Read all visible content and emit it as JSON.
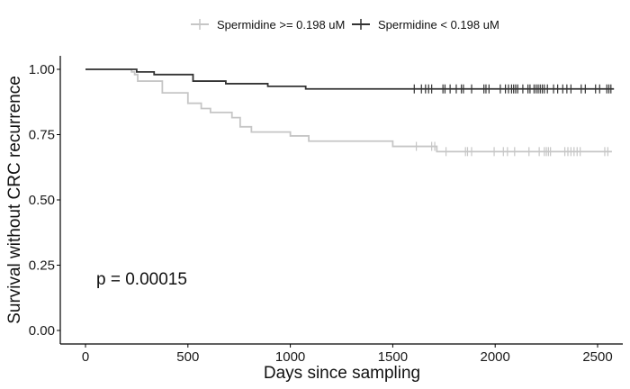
{
  "chart_data": {
    "type": "line",
    "subtype": "kaplan-meier",
    "title": "",
    "xlabel": "Days since sampling",
    "ylabel": "Survival without CRC recurrence",
    "xlim": [
      -120,
      2620
    ],
    "ylim": [
      -0.05,
      1.05
    ],
    "xticks": [
      0,
      500,
      1000,
      1500,
      2000,
      2500
    ],
    "xtick_labels": [
      "0",
      "500",
      "1000",
      "1500",
      "2000",
      "2500"
    ],
    "yticks": [
      0,
      0.25,
      0.5,
      0.75,
      1.0
    ],
    "ytick_labels": [
      "0.00",
      "0.25",
      "0.50",
      "0.75",
      "1.00"
    ],
    "grid": false,
    "legend_position": "top",
    "annotation": "p = 0.00015",
    "series": [
      {
        "name": "Spermidine >= 0.198 uM",
        "color": "#c6c6c6",
        "steps": [
          [
            0,
            1.0
          ],
          [
            225,
            0.99
          ],
          [
            240,
            0.98
          ],
          [
            255,
            0.955
          ],
          [
            375,
            0.91
          ],
          [
            500,
            0.87
          ],
          [
            565,
            0.85
          ],
          [
            610,
            0.835
          ],
          [
            715,
            0.815
          ],
          [
            755,
            0.78
          ],
          [
            810,
            0.76
          ],
          [
            1000,
            0.745
          ],
          [
            1090,
            0.725
          ],
          [
            1500,
            0.705
          ],
          [
            1715,
            0.685
          ]
        ],
        "end": 2570,
        "censored": [
          1615,
          1690,
          1705,
          1760,
          1855,
          1865,
          1885,
          1995,
          2040,
          2060,
          2095,
          2165,
          2215,
          2240,
          2250,
          2260,
          2270,
          2340,
          2355,
          2370,
          2385,
          2400,
          2415,
          2535,
          2550
        ]
      },
      {
        "name": "Spermidine < 0.198 uM",
        "color": "#333333",
        "steps": [
          [
            0,
            1.0
          ],
          [
            250,
            0.99
          ],
          [
            335,
            0.98
          ],
          [
            525,
            0.955
          ],
          [
            685,
            0.945
          ],
          [
            890,
            0.935
          ],
          [
            1075,
            0.925
          ]
        ],
        "end": 2580,
        "censored": [
          1605,
          1640,
          1660,
          1675,
          1690,
          1745,
          1755,
          1780,
          1810,
          1835,
          1845,
          1885,
          1945,
          1955,
          1970,
          2025,
          2050,
          2065,
          2080,
          2090,
          2100,
          2110,
          2135,
          2160,
          2170,
          2190,
          2200,
          2210,
          2220,
          2230,
          2240,
          2255,
          2285,
          2305,
          2330,
          2350,
          2370,
          2420,
          2440,
          2490,
          2510,
          2545,
          2555,
          2565
        ]
      }
    ]
  }
}
